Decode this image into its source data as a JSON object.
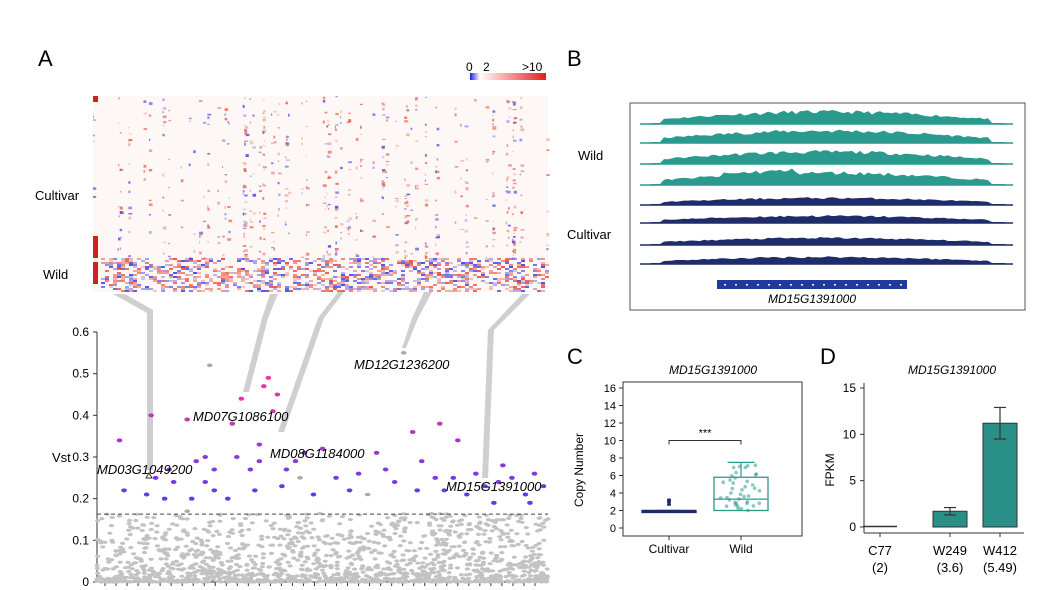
{
  "panel_a": {
    "letter": "A",
    "heatmap": {
      "scale_labels": [
        "0",
        "2",
        ">10"
      ],
      "row_groups": [
        "Cultivar",
        "Wild"
      ],
      "colors": {
        "low": "#2a2ae8",
        "mid": "#ffffff",
        "high": "#e8321e",
        "group_bar": "#d41f1f"
      }
    },
    "callouts": [
      "MD03G1049200",
      "MD07G1086100",
      "MD08G1184000",
      "MD12G1236200",
      "MD15G1391000"
    ]
  },
  "panel_b": {
    "letter": "B",
    "group_labels": [
      "Wild",
      "Cultivar"
    ],
    "gene_label": "MD15G1391000",
    "colors": {
      "wild": "#2a9a8e",
      "cultivar": "#1e2c6b",
      "gene": "#1f3a9a"
    }
  },
  "panel_c": {
    "letter": "C",
    "title": "MD15G1391000",
    "significance": "***"
  },
  "panel_d": {
    "letter": "D",
    "title": "MD15G1391000"
  },
  "chart_data": [
    {
      "id": "vst_manhattan",
      "type": "scatter",
      "title": "",
      "xlabel": "",
      "ylabel": "Vst",
      "ylim": [
        0,
        0.6
      ],
      "yticks": [
        0,
        0.1,
        0.2,
        0.3,
        0.4,
        0.5,
        0.6
      ],
      "threshold": 0.163,
      "highlighted_points": [
        [
          0.05,
          0.34
        ],
        [
          0.06,
          0.22
        ],
        [
          0.11,
          0.21
        ],
        [
          0.13,
          0.25
        ],
        [
          0.12,
          0.4
        ],
        [
          0.16,
          0.27
        ],
        [
          0.17,
          0.24
        ],
        [
          0.2,
          0.39
        ],
        [
          0.22,
          0.29
        ],
        [
          0.21,
          0.2
        ],
        [
          0.24,
          0.24
        ],
        [
          0.26,
          0.22
        ],
        [
          0.26,
          0.27
        ],
        [
          0.24,
          0.3
        ],
        [
          0.29,
          0.2
        ],
        [
          0.3,
          0.38
        ],
        [
          0.31,
          0.3
        ],
        [
          0.34,
          0.27
        ],
        [
          0.32,
          0.44
        ],
        [
          0.35,
          0.22
        ],
        [
          0.36,
          0.33
        ],
        [
          0.39,
          0.41
        ],
        [
          0.37,
          0.47
        ],
        [
          0.38,
          0.49
        ],
        [
          0.36,
          0.29
        ],
        [
          0.4,
          0.45
        ],
        [
          0.44,
          0.29
        ],
        [
          0.41,
          0.23
        ],
        [
          0.42,
          0.27
        ],
        [
          0.46,
          0.31
        ],
        [
          0.48,
          0.21
        ],
        [
          0.5,
          0.32
        ],
        [
          0.53,
          0.25
        ],
        [
          0.58,
          0.26
        ],
        [
          0.62,
          0.31
        ],
        [
          0.64,
          0.27
        ],
        [
          0.7,
          0.36
        ],
        [
          0.71,
          0.22
        ],
        [
          0.72,
          0.29
        ],
        [
          0.75,
          0.25
        ],
        [
          0.76,
          0.38
        ],
        [
          0.77,
          0.22
        ],
        [
          0.79,
          0.25
        ],
        [
          0.8,
          0.34
        ],
        [
          0.82,
          0.21
        ],
        [
          0.84,
          0.26
        ],
        [
          0.86,
          0.23
        ],
        [
          0.89,
          0.24
        ],
        [
          0.9,
          0.28
        ],
        [
          0.92,
          0.25
        ],
        [
          0.95,
          0.21
        ],
        [
          0.97,
          0.26
        ],
        [
          0.99,
          0.23
        ],
        [
          0.88,
          0.19
        ],
        [
          0.96,
          0.19
        ],
        [
          0.15,
          0.2
        ],
        [
          0.66,
          0.24
        ],
        [
          0.56,
          0.22
        ]
      ],
      "gray_points": [
        [
          0.25,
          0.52
        ],
        [
          0.68,
          0.55
        ],
        [
          0.45,
          0.25
        ],
        [
          0.6,
          0.21
        ],
        [
          0.2,
          0.17
        ]
      ],
      "labeled_points": [
        {
          "label": "MD03G1049200",
          "x": 0.12,
          "y": 0.245
        },
        {
          "label": "MD07G1086100",
          "x": 0.37,
          "y": 0.43
        },
        {
          "label": "MD08G1184000",
          "x": 0.47,
          "y": 0.3
        },
        {
          "label": "MD12G1236200",
          "x": 0.69,
          "y": 0.55
        },
        {
          "label": "MD15G1391000",
          "x": 0.86,
          "y": 0.24
        }
      ]
    },
    {
      "id": "copy_number_box",
      "type": "box",
      "title": "MD15G1391000",
      "xlabel": "",
      "ylabel": "Copy Number",
      "ylim": [
        0,
        16
      ],
      "yticks": [
        0,
        2,
        4,
        6,
        8,
        10,
        12,
        14,
        16
      ],
      "categories": [
        "Cultivar",
        "Wild"
      ],
      "boxes": [
        {
          "name": "Cultivar",
          "min": 2,
          "q1": 2,
          "median": 2,
          "q3": 2,
          "max": 2,
          "outliers": [
            2.7,
            3.0,
            3.2
          ]
        },
        {
          "name": "Wild",
          "min": 2,
          "q1": 2,
          "median": 3.3,
          "q3": 5.8,
          "max": 7.5,
          "outliers": []
        }
      ],
      "significance": "***"
    },
    {
      "id": "fpkm_bar",
      "type": "bar",
      "title": "MD15G1391000",
      "xlabel": "",
      "ylabel": "FPKM",
      "ylim": [
        0,
        15
      ],
      "yticks": [
        0,
        5,
        10,
        15
      ],
      "categories": [
        "C77",
        "W249",
        "W412"
      ],
      "sublabels": [
        "(2)",
        "(3.6)",
        "(5.49)"
      ],
      "values": [
        0.05,
        1.7,
        11.2
      ],
      "errors": [
        0,
        0.4,
        1.7
      ]
    }
  ]
}
